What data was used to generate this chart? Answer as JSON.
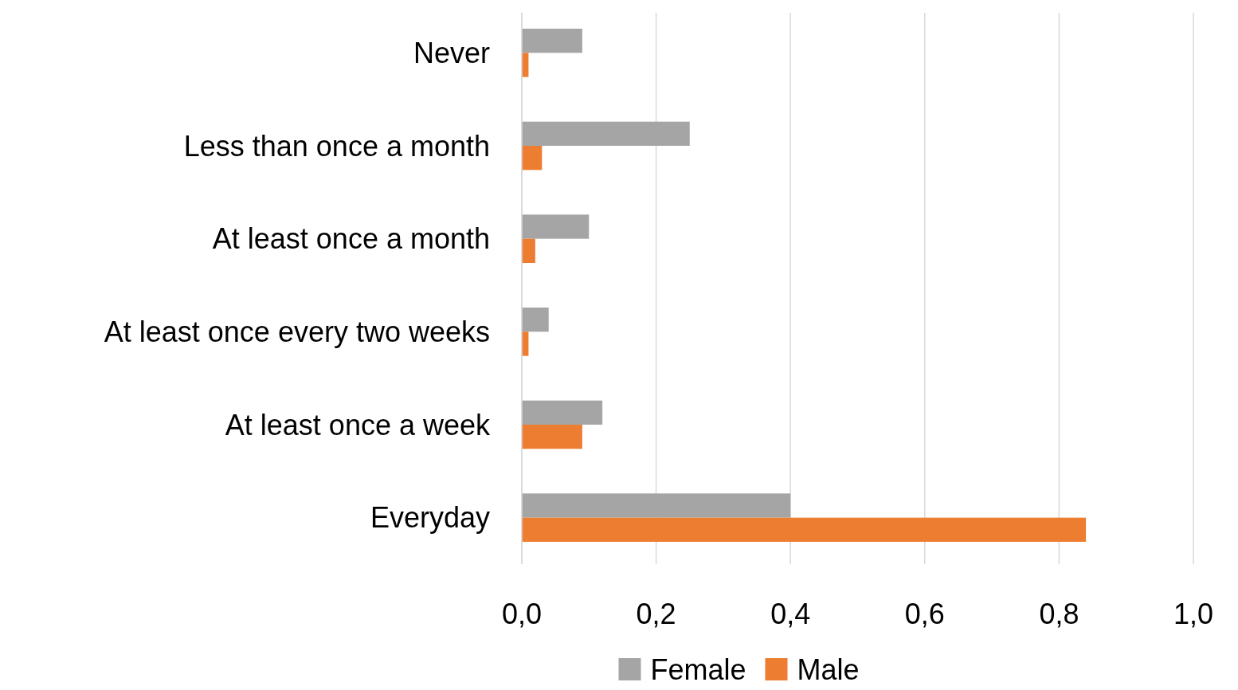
{
  "chart_data": {
    "type": "bar",
    "orientation": "horizontal",
    "categories": [
      "Never",
      "Less than once a month",
      "At least once a month",
      "At least once every two weeks",
      "At least once a week",
      "Everyday"
    ],
    "series": [
      {
        "name": "Female",
        "color": "#a5a5a5",
        "values": [
          0.09,
          0.25,
          0.1,
          0.04,
          0.12,
          0.4
        ]
      },
      {
        "name": "Male",
        "color": "#ed7d31",
        "values": [
          0.01,
          0.03,
          0.02,
          0.01,
          0.09,
          0.84
        ]
      }
    ],
    "xlim": [
      0,
      1
    ],
    "xticks": [
      {
        "value": 0,
        "label": "0,0"
      },
      {
        "value": 0.2,
        "label": "0,2"
      },
      {
        "value": 0.4,
        "label": "0,4"
      },
      {
        "value": 0.6,
        "label": "0,6"
      },
      {
        "value": 0.8,
        "label": "0,8"
      },
      {
        "value": 1,
        "label": "1,0"
      }
    ],
    "grid": "x",
    "legend": "bottom"
  }
}
